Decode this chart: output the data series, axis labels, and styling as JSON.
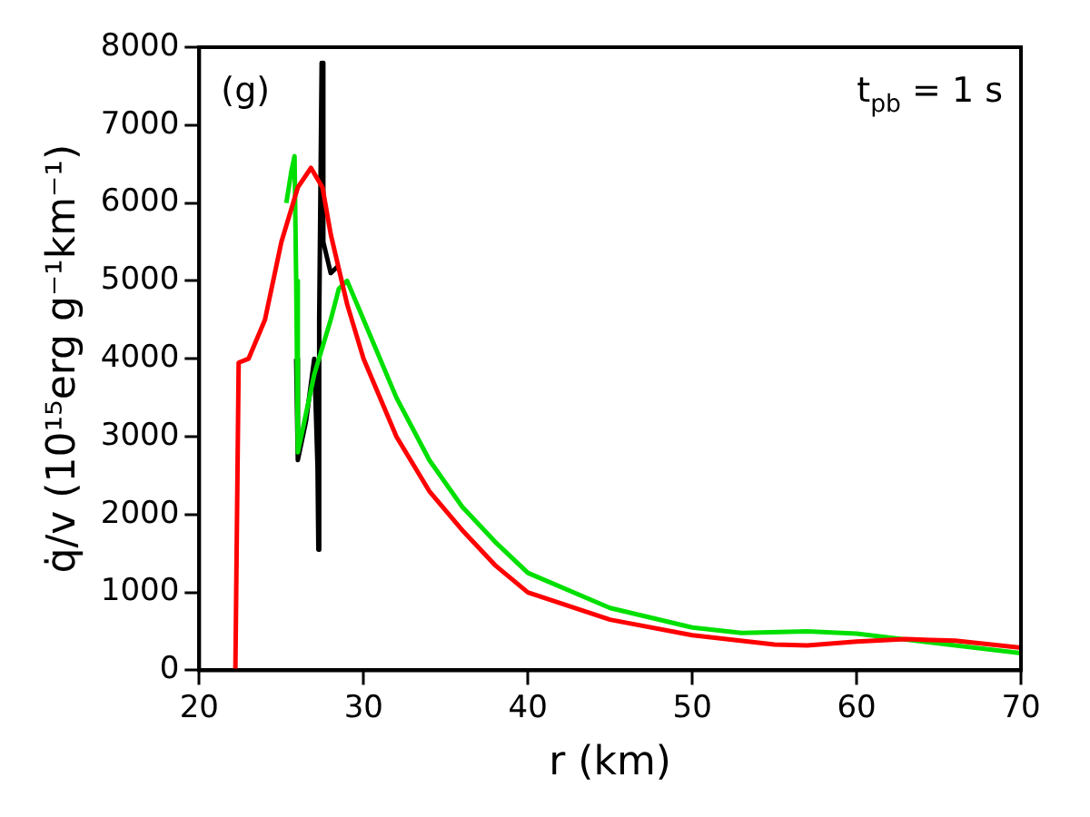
{
  "chart_data": {
    "type": "line",
    "xlabel": "r (km)",
    "ylabel": "q̇/v (10¹⁵erg g⁻¹km⁻¹)",
    "annotations": [
      "(g)",
      "t$_{pb}$ = 1 s"
    ],
    "xlim": [
      20,
      70
    ],
    "xticks": [
      20,
      30,
      40,
      50,
      60,
      70
    ],
    "ylim": [
      0,
      8000
    ],
    "yticks": [
      0,
      1000,
      2000,
      3000,
      4000,
      5000,
      6000,
      7000,
      8000
    ],
    "grid": false,
    "legend": false,
    "marker": "none",
    "line_style": "solid",
    "series": [
      {
        "color": "#000000",
        "x": [
          25.9,
          26,
          26.5,
          27,
          27.2,
          27.25,
          27.3,
          27.45,
          27.55,
          28,
          28.5
        ],
        "values": [
          4000,
          2700,
          3200,
          4000,
          2600,
          1550,
          4500,
          7800,
          5500,
          5100,
          5200
        ]
      },
      {
        "color": "#00e000",
        "x": [
          25.3,
          25.6,
          25.8,
          25.9,
          26,
          26.3,
          27,
          28,
          28.5,
          29,
          30,
          32,
          34,
          36,
          38,
          40,
          45,
          50,
          53,
          57,
          60,
          70
        ],
        "values": [
          6000,
          6400,
          6600,
          5000,
          2800,
          3100,
          3800,
          4500,
          4900,
          5000,
          4500,
          3500,
          2700,
          2100,
          1650,
          1250,
          800,
          550,
          480,
          500,
          470,
          220
        ]
      },
      {
        "color": "#ff0000",
        "x": [
          22.2,
          22.4,
          23,
          24,
          25,
          26,
          26.8,
          27.5,
          28,
          29,
          30,
          32,
          34,
          36,
          38,
          40,
          45,
          50,
          55,
          57,
          60,
          63,
          66,
          70
        ],
        "values": [
          0,
          3950,
          4000,
          4500,
          5500,
          6200,
          6450,
          6200,
          5600,
          4700,
          4000,
          3000,
          2300,
          1800,
          1350,
          1000,
          650,
          450,
          330,
          320,
          370,
          400,
          380,
          290
        ]
      }
    ]
  }
}
